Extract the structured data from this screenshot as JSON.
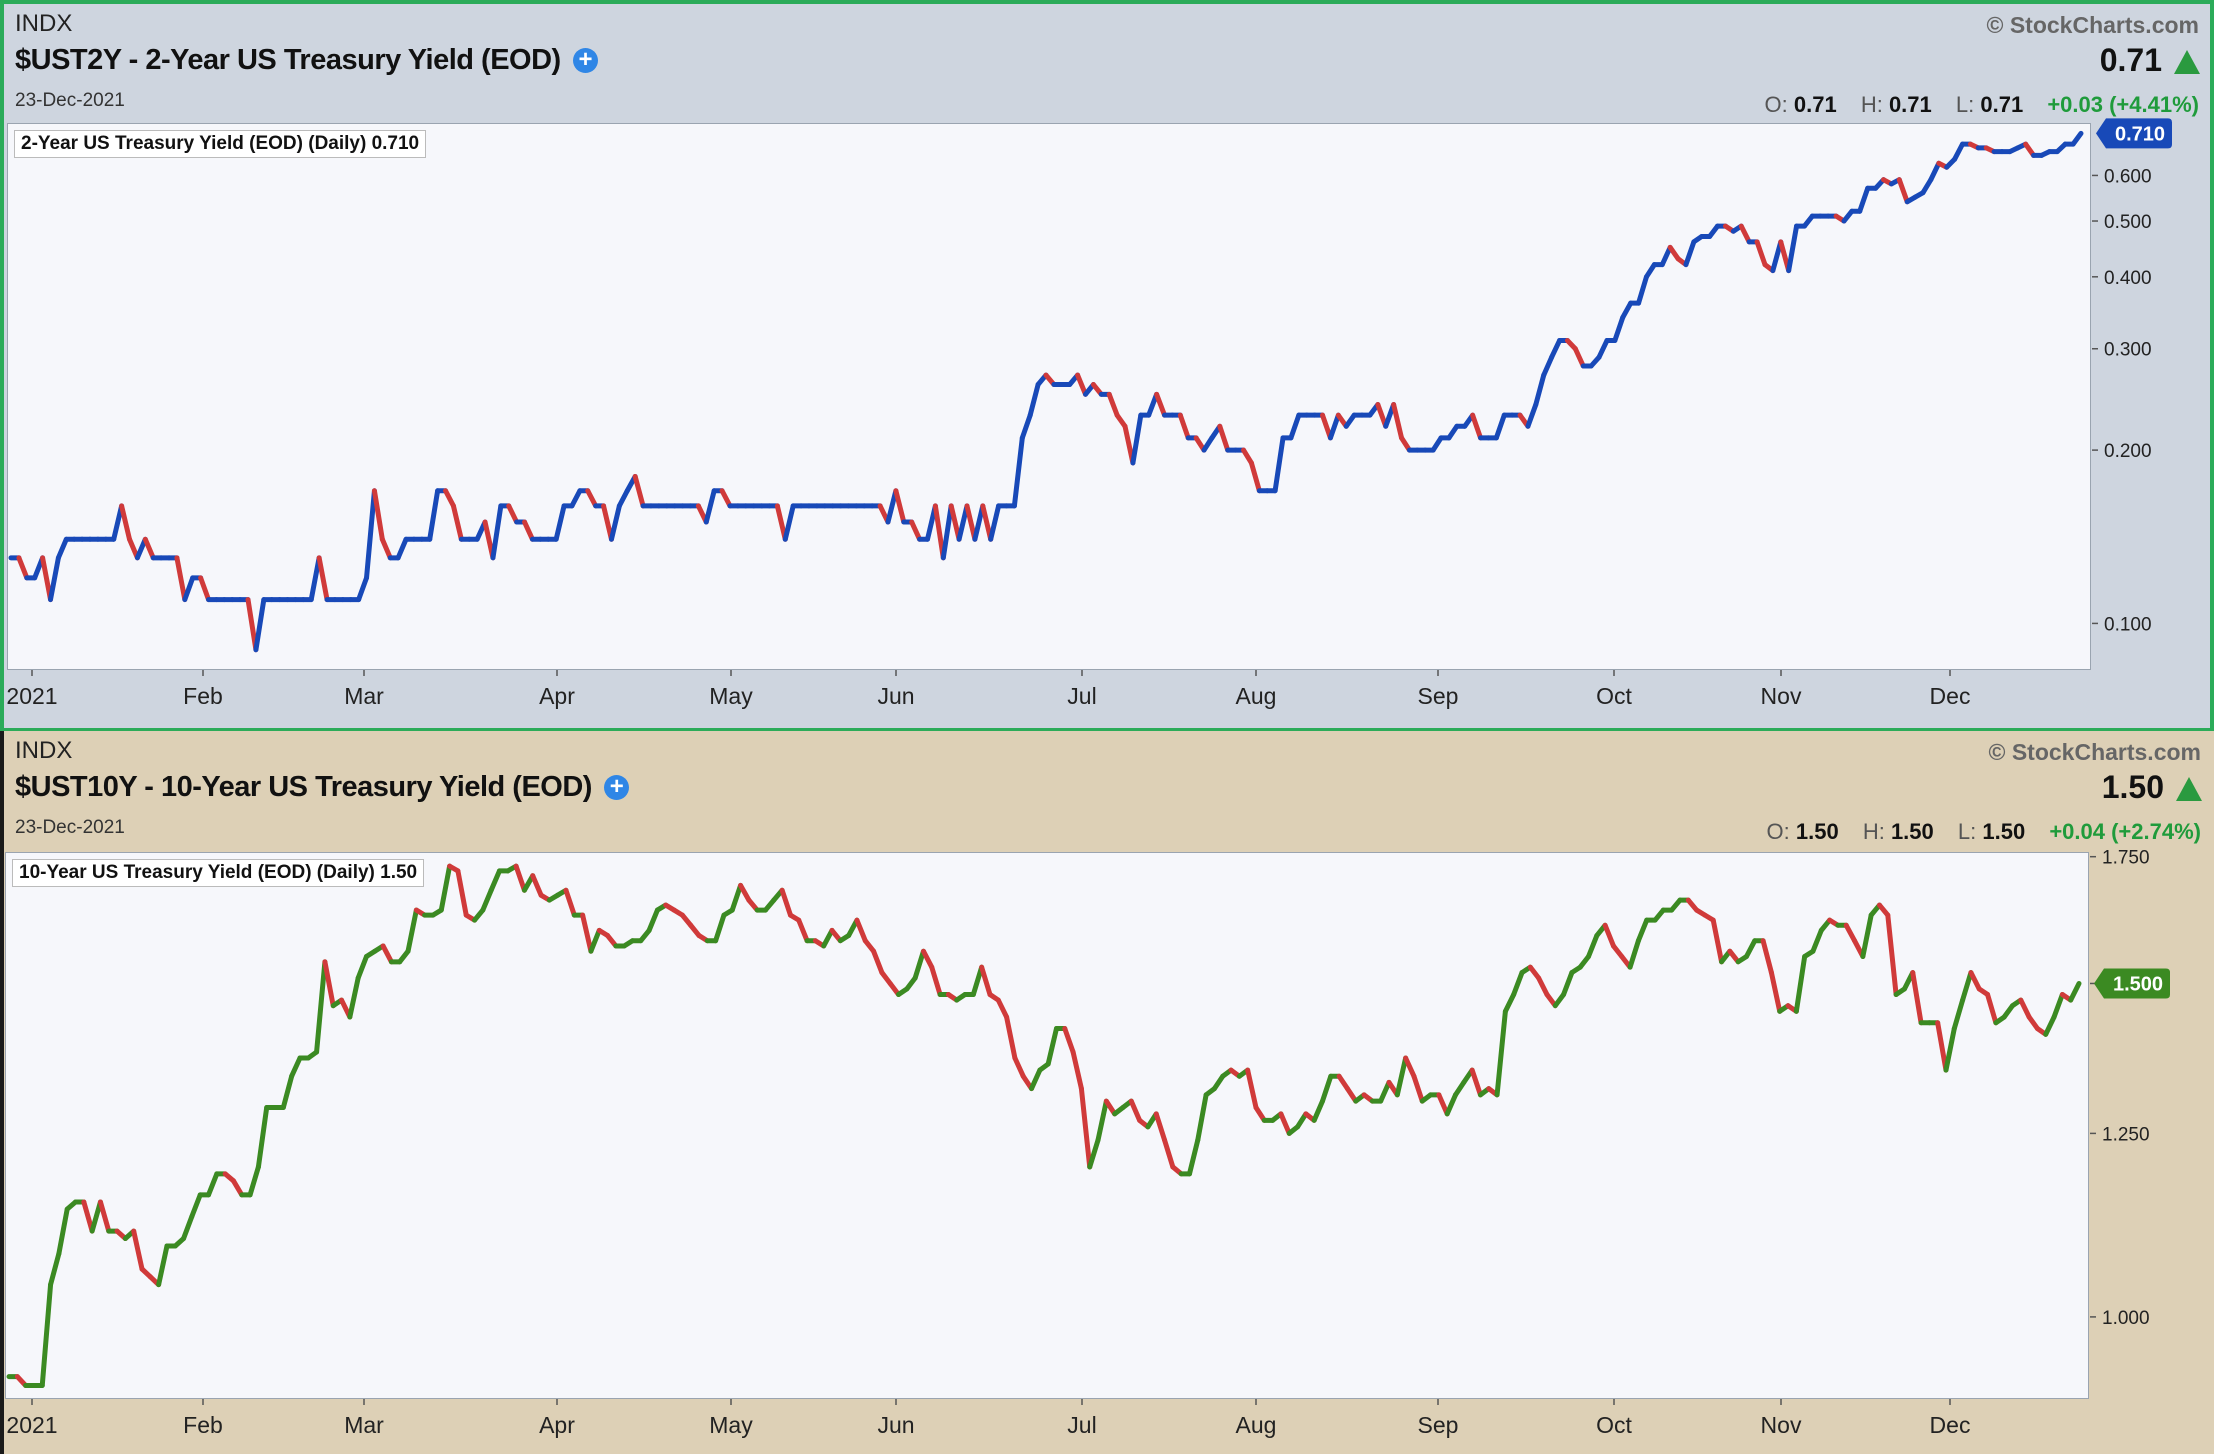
{
  "chart_data": [
    {
      "type": "line",
      "exchange": "INDX",
      "title": "$UST2Y - 2-Year US Treasury Yield (EOD)",
      "date": "23-Dec-2021",
      "copyright": "© StockCharts.com",
      "price": "0.71",
      "ohlc": {
        "o": "0.71",
        "h": "0.71",
        "l": "0.71",
        "change": "+0.03 (+4.41%)"
      },
      "legend": "2-Year US Treasury Yield (EOD) (Daily) 0.710",
      "last_value_tag": "0.710",
      "y_scale": "log",
      "ylim": [
        0.083,
        0.74
      ],
      "y_ticks": [
        "0.600",
        "0.500",
        "0.400",
        "0.300",
        "0.200",
        "0.100"
      ],
      "x_ticks": [
        "2021",
        "Feb",
        "Mar",
        "Apr",
        "May",
        "Jun",
        "Jul",
        "Aug",
        "Sep",
        "Oct",
        "Nov",
        "Dec"
      ],
      "colors": {
        "up": "#1849b8",
        "down": "#d03a3a",
        "tag": "#1849b8"
      },
      "grid": false,
      "series": [
        {
          "values": [
            0.13,
            0.13,
            0.12,
            0.12,
            0.13,
            0.11,
            0.13,
            0.14,
            0.14,
            0.14,
            0.14,
            0.14,
            0.14,
            0.14,
            0.16,
            0.14,
            0.13,
            0.14,
            0.13,
            0.13,
            0.13,
            0.13,
            0.11,
            0.12,
            0.12,
            0.11,
            0.11,
            0.11,
            0.11,
            0.11,
            0.11,
            0.09,
            0.11,
            0.11,
            0.11,
            0.11,
            0.11,
            0.11,
            0.11,
            0.13,
            0.11,
            0.11,
            0.11,
            0.11,
            0.11,
            0.12,
            0.17,
            0.14,
            0.13,
            0.13,
            0.14,
            0.14,
            0.14,
            0.14,
            0.17,
            0.17,
            0.16,
            0.14,
            0.14,
            0.14,
            0.15,
            0.13,
            0.16,
            0.16,
            0.15,
            0.15,
            0.14,
            0.14,
            0.14,
            0.14,
            0.16,
            0.16,
            0.17,
            0.17,
            0.16,
            0.16,
            0.14,
            0.16,
            0.17,
            0.18,
            0.16,
            0.16,
            0.16,
            0.16,
            0.16,
            0.16,
            0.16,
            0.16,
            0.15,
            0.17,
            0.17,
            0.16,
            0.16,
            0.16,
            0.16,
            0.16,
            0.16,
            0.16,
            0.14,
            0.16,
            0.16,
            0.16,
            0.16,
            0.16,
            0.16,
            0.16,
            0.16,
            0.16,
            0.16,
            0.16,
            0.16,
            0.15,
            0.17,
            0.15,
            0.15,
            0.14,
            0.14,
            0.16,
            0.13,
            0.16,
            0.14,
            0.16,
            0.14,
            0.16,
            0.14,
            0.16,
            0.16,
            0.16,
            0.21,
            0.23,
            0.26,
            0.27,
            0.26,
            0.26,
            0.26,
            0.27,
            0.25,
            0.26,
            0.25,
            0.25,
            0.23,
            0.22,
            0.19,
            0.23,
            0.23,
            0.25,
            0.23,
            0.23,
            0.23,
            0.21,
            0.21,
            0.2,
            0.21,
            0.22,
            0.2,
            0.2,
            0.2,
            0.19,
            0.17,
            0.17,
            0.17,
            0.21,
            0.21,
            0.23,
            0.23,
            0.23,
            0.23,
            0.21,
            0.23,
            0.22,
            0.23,
            0.23,
            0.23,
            0.24,
            0.22,
            0.24,
            0.21,
            0.2,
            0.2,
            0.2,
            0.2,
            0.21,
            0.21,
            0.22,
            0.22,
            0.23,
            0.21,
            0.21,
            0.21,
            0.23,
            0.23,
            0.23,
            0.22,
            0.24,
            0.27,
            0.29,
            0.31,
            0.31,
            0.3,
            0.28,
            0.28,
            0.29,
            0.31,
            0.31,
            0.34,
            0.36,
            0.36,
            0.4,
            0.42,
            0.42,
            0.45,
            0.43,
            0.42,
            0.46,
            0.47,
            0.47,
            0.49,
            0.49,
            0.48,
            0.49,
            0.46,
            0.46,
            0.42,
            0.41,
            0.46,
            0.41,
            0.49,
            0.49,
            0.51,
            0.51,
            0.51,
            0.51,
            0.5,
            0.52,
            0.52,
            0.57,
            0.57,
            0.59,
            0.58,
            0.59,
            0.54,
            0.55,
            0.56,
            0.59,
            0.63,
            0.62,
            0.64,
            0.68,
            0.68,
            0.67,
            0.67,
            0.66,
            0.66,
            0.66,
            0.67,
            0.68,
            0.65,
            0.65,
            0.66,
            0.66,
            0.68,
            0.68,
            0.71
          ]
        }
      ]
    },
    {
      "type": "line",
      "exchange": "INDX",
      "title": "$UST10Y - 10-Year US Treasury Yield (EOD)",
      "date": "23-Dec-2021",
      "copyright": "© StockCharts.com",
      "price": "1.50",
      "ohlc": {
        "o": "1.50",
        "h": "1.50",
        "l": "1.50",
        "change": "+0.04 (+2.74%)"
      },
      "legend": "10-Year US Treasury Yield (EOD) (Daily) 1.50",
      "last_value_tag": "1.500",
      "y_scale": "log",
      "ylim": [
        0.905,
        1.76
      ],
      "y_ticks": [
        "1.750",
        "1.500",
        "1.250",
        "1.000"
      ],
      "x_ticks": [
        "2021",
        "Feb",
        "Mar",
        "Apr",
        "May",
        "Jun",
        "Jul",
        "Aug",
        "Sep",
        "Oct",
        "Nov",
        "Dec"
      ],
      "colors": {
        "up": "#3b8a22",
        "down": "#d03a3a",
        "tag": "#3b8a22"
      },
      "grid": false,
      "series": [
        {
          "values": [
            0.93,
            0.93,
            0.92,
            0.92,
            0.92,
            1.04,
            1.08,
            1.14,
            1.15,
            1.15,
            1.11,
            1.15,
            1.11,
            1.11,
            1.1,
            1.11,
            1.06,
            1.05,
            1.04,
            1.09,
            1.09,
            1.1,
            1.13,
            1.16,
            1.16,
            1.19,
            1.19,
            1.18,
            1.16,
            1.16,
            1.2,
            1.29,
            1.29,
            1.29,
            1.34,
            1.37,
            1.37,
            1.38,
            1.54,
            1.46,
            1.47,
            1.44,
            1.51,
            1.55,
            1.56,
            1.57,
            1.54,
            1.54,
            1.56,
            1.64,
            1.63,
            1.63,
            1.64,
            1.73,
            1.72,
            1.63,
            1.62,
            1.64,
            1.68,
            1.72,
            1.72,
            1.73,
            1.68,
            1.71,
            1.67,
            1.66,
            1.67,
            1.68,
            1.63,
            1.63,
            1.56,
            1.6,
            1.59,
            1.57,
            1.57,
            1.58,
            1.58,
            1.6,
            1.64,
            1.65,
            1.64,
            1.63,
            1.61,
            1.59,
            1.58,
            1.58,
            1.63,
            1.64,
            1.69,
            1.66,
            1.64,
            1.64,
            1.66,
            1.68,
            1.63,
            1.62,
            1.58,
            1.58,
            1.57,
            1.6,
            1.58,
            1.59,
            1.62,
            1.58,
            1.56,
            1.52,
            1.5,
            1.48,
            1.49,
            1.51,
            1.56,
            1.53,
            1.48,
            1.48,
            1.47,
            1.48,
            1.48,
            1.53,
            1.48,
            1.47,
            1.44,
            1.37,
            1.34,
            1.32,
            1.35,
            1.36,
            1.42,
            1.42,
            1.38,
            1.32,
            1.2,
            1.24,
            1.3,
            1.28,
            1.29,
            1.3,
            1.27,
            1.26,
            1.28,
            1.24,
            1.2,
            1.19,
            1.19,
            1.24,
            1.31,
            1.32,
            1.34,
            1.35,
            1.34,
            1.35,
            1.29,
            1.27,
            1.27,
            1.28,
            1.25,
            1.26,
            1.28,
            1.27,
            1.3,
            1.34,
            1.34,
            1.32,
            1.3,
            1.31,
            1.3,
            1.3,
            1.33,
            1.31,
            1.37,
            1.34,
            1.3,
            1.31,
            1.31,
            1.28,
            1.31,
            1.33,
            1.35,
            1.31,
            1.32,
            1.31,
            1.45,
            1.48,
            1.52,
            1.53,
            1.51,
            1.48,
            1.46,
            1.48,
            1.52,
            1.53,
            1.55,
            1.59,
            1.61,
            1.57,
            1.55,
            1.53,
            1.58,
            1.62,
            1.62,
            1.64,
            1.64,
            1.66,
            1.66,
            1.64,
            1.63,
            1.62,
            1.54,
            1.56,
            1.54,
            1.55,
            1.58,
            1.58,
            1.52,
            1.45,
            1.46,
            1.45,
            1.55,
            1.56,
            1.6,
            1.62,
            1.61,
            1.61,
            1.58,
            1.55,
            1.63,
            1.65,
            1.63,
            1.48,
            1.49,
            1.52,
            1.43,
            1.43,
            1.43,
            1.35,
            1.42,
            1.47,
            1.52,
            1.49,
            1.48,
            1.43,
            1.44,
            1.46,
            1.47,
            1.44,
            1.42,
            1.41,
            1.44,
            1.48,
            1.47,
            1.5
          ]
        }
      ]
    }
  ]
}
